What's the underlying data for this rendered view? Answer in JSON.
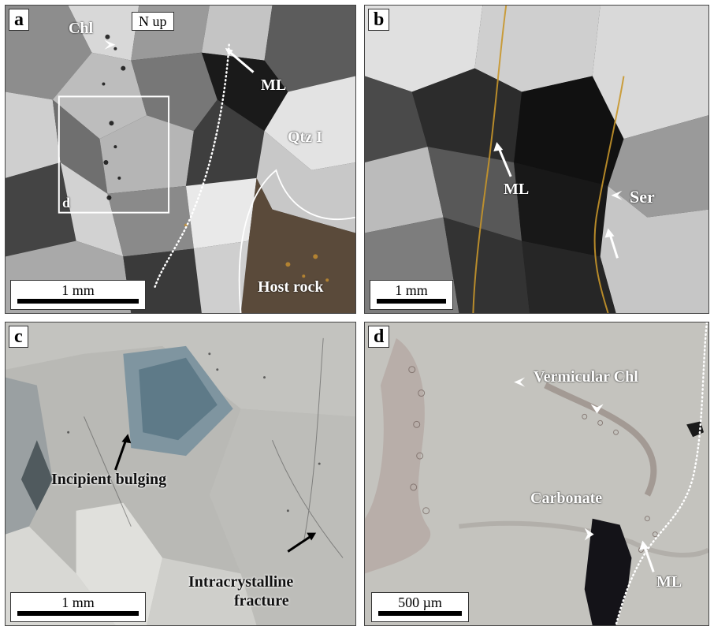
{
  "panels": {
    "a": {
      "label": "a",
      "orientation": "N up",
      "scale": "1 mm",
      "annotations": {
        "chl": "Chl",
        "ml": "ML",
        "qtz": "Qtz I",
        "host": "Host rock",
        "inset": "d"
      }
    },
    "b": {
      "label": "b",
      "scale": "1 mm",
      "annotations": {
        "ml": "ML",
        "ser": "Ser"
      }
    },
    "c": {
      "label": "c",
      "scale": "1 mm",
      "annotations": {
        "bulging": "Incipient bulging",
        "fracture_line1": "Intracrystalline",
        "fracture_line2": "fracture"
      }
    },
    "d": {
      "label": "d",
      "scale": "500 µm",
      "annotations": {
        "vermicular": "Vermicular Chl",
        "carbonate": "Carbonate",
        "ml": "ML"
      }
    }
  }
}
